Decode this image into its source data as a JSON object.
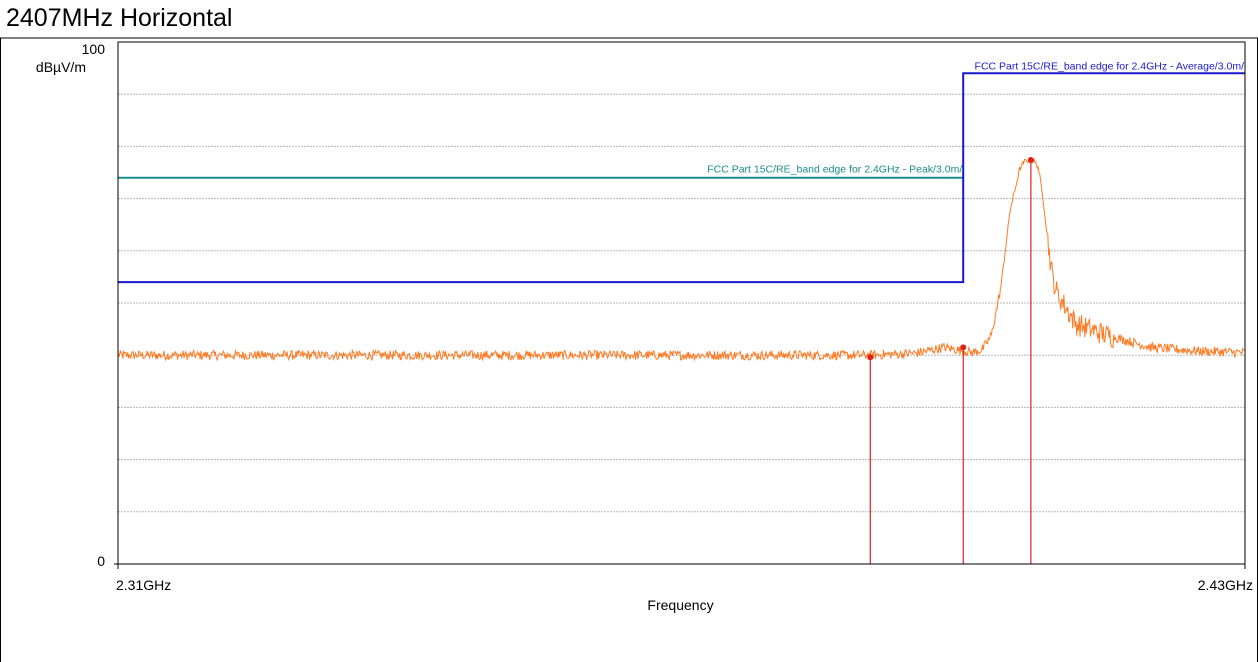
{
  "window": {
    "title": "2407MHz Horizontal"
  },
  "chart_data": {
    "type": "line",
    "title": "2407MHz Horizontal",
    "xlabel": "Frequency",
    "ylabel": "dBµV/m",
    "x_unit": "GHz",
    "xlim": [
      2.31,
      2.43
    ],
    "ylim": [
      0,
      100
    ],
    "x_tick_labels": [
      "2.31GHz",
      "2.43GHz"
    ],
    "y_tick_labels": [
      "0",
      "100"
    ],
    "grid": true,
    "limit_lines": [
      {
        "name": "FCC Part 15C/RE_band edge for 2.4GHz  - Peak/3.0m/",
        "color": "#1a8c8c",
        "points": [
          [
            2.31,
            74
          ],
          [
            2.4,
            74
          ]
        ]
      },
      {
        "name": "FCC Part 15C/RE_band edge for 2.4GHz  - Average/3.0m/",
        "color": "#1a1acc",
        "points": [
          [
            2.31,
            54
          ],
          [
            2.4,
            54
          ],
          [
            2.4,
            94
          ],
          [
            2.43,
            94
          ]
        ]
      }
    ],
    "series": [
      {
        "color": "#ff7a22",
        "x": [
          2.31,
          2.33,
          2.35,
          2.37,
          2.39,
          2.395,
          2.398,
          2.4,
          2.401,
          2.4015,
          2.402,
          2.403,
          2.404,
          2.405,
          2.406,
          2.4065,
          2.407,
          2.4075,
          2.408,
          2.408,
          2.4085,
          2.409,
          2.4095,
          2.41,
          2.412,
          2.415,
          2.42,
          2.425,
          2.43
        ],
        "y": [
          40,
          40,
          40,
          40,
          40,
          40.4,
          41.5,
          40.8,
          40.5,
          40.8,
          41,
          43.8,
          53,
          67.8,
          75.6,
          77.1,
          77.4,
          77.2,
          76,
          76,
          70,
          62,
          55,
          51.8,
          46,
          44,
          41.5,
          40.8,
          40.5
        ]
      }
    ],
    "markers": [
      {
        "x": 2.3901,
        "y": 39.6
      },
      {
        "x": 2.4,
        "y": 41.5
      },
      {
        "x": 2.4072,
        "y": 77.4
      }
    ]
  },
  "colors": {
    "trace": "#ff7a22",
    "peak_limit": "#1a8c8c",
    "average_limit": "#1a1acc",
    "marker": "#e0201c",
    "grid": "#b8b8b8",
    "frame": "#000000"
  }
}
